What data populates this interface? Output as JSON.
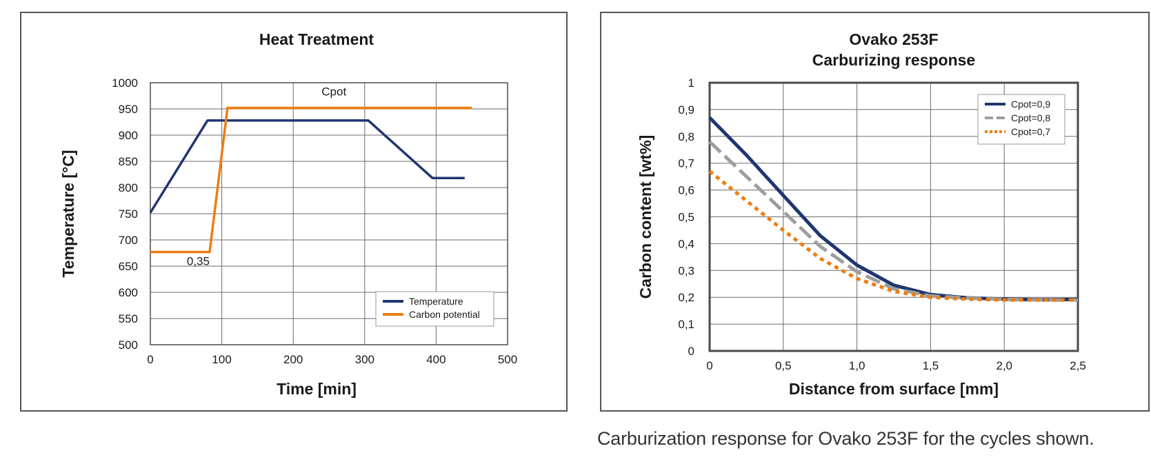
{
  "caption": "Carburization response for Ovako 253F for the cycles shown.",
  "chart_data": [
    {
      "type": "line",
      "title": "Heat Treatment",
      "xlabel": "Time [min]",
      "ylabel": "Temperature [°C]",
      "xlim": [
        0,
        500
      ],
      "ylim": [
        500,
        1000
      ],
      "xticks": [
        "0",
        "100",
        "200",
        "300",
        "400",
        "500"
      ],
      "yticks": [
        "500",
        "550",
        "600",
        "650",
        "700",
        "750",
        "800",
        "850",
        "900",
        "950",
        "1000"
      ],
      "grid": true,
      "legend_position": "bottom-right",
      "annotations": [
        "Cpot",
        "0,35"
      ],
      "series": [
        {
          "name": "Temperature",
          "color": "#1f3670",
          "style": "solid",
          "x": [
            0,
            80,
            305,
            395,
            440
          ],
          "y": [
            752,
            928,
            928,
            818,
            818
          ]
        },
        {
          "name": "Carbon potential",
          "color": "#ee7d10",
          "style": "solid",
          "x": [
            0,
            83,
            108,
            450
          ],
          "y": [
            677,
            677,
            952,
            952
          ]
        }
      ]
    },
    {
      "type": "line",
      "title": "Ovako 253F\nCarburizing response",
      "title_lines": [
        "Ovako 253F",
        "Carburizing response"
      ],
      "xlabel": "Distance from surface [mm]",
      "ylabel": "Carbon content [wt%]",
      "xlim": [
        0,
        2.5
      ],
      "ylim": [
        0,
        1
      ],
      "xticks": [
        "0",
        "0,5",
        "1,0",
        "1,5",
        "2,0",
        "2,5"
      ],
      "yticks": [
        "0",
        "0,1",
        "0,2",
        "0,3",
        "0,4",
        "0,5",
        "0,6",
        "0,7",
        "0,8",
        "0,9",
        "1"
      ],
      "grid": true,
      "legend_position": "top-right",
      "series": [
        {
          "name": "Cpot=0,9",
          "color": "#1f3670",
          "style": "solid",
          "x": [
            0,
            0.25,
            0.5,
            0.75,
            1.0,
            1.25,
            1.5,
            1.75,
            2.0,
            2.25,
            2.5
          ],
          "y": [
            0.87,
            0.73,
            0.58,
            0.43,
            0.32,
            0.245,
            0.21,
            0.198,
            0.193,
            0.191,
            0.192
          ]
        },
        {
          "name": "Cpot=0,8",
          "color": "#9e9e9e",
          "style": "dashed",
          "x": [
            0,
            0.25,
            0.5,
            0.75,
            1.0,
            1.25,
            1.5,
            1.75,
            2.0,
            2.25,
            2.5
          ],
          "y": [
            0.78,
            0.65,
            0.52,
            0.39,
            0.295,
            0.232,
            0.205,
            0.197,
            0.192,
            0.19,
            0.19
          ]
        },
        {
          "name": "Cpot=0,7",
          "color": "#ee7d10",
          "style": "dotted",
          "x": [
            0,
            0.25,
            0.5,
            0.75,
            1.0,
            1.25,
            1.5,
            1.75,
            2.0,
            2.25,
            2.5
          ],
          "y": [
            0.67,
            0.56,
            0.45,
            0.345,
            0.27,
            0.222,
            0.2,
            0.193,
            0.19,
            0.19,
            0.19
          ]
        }
      ]
    }
  ]
}
